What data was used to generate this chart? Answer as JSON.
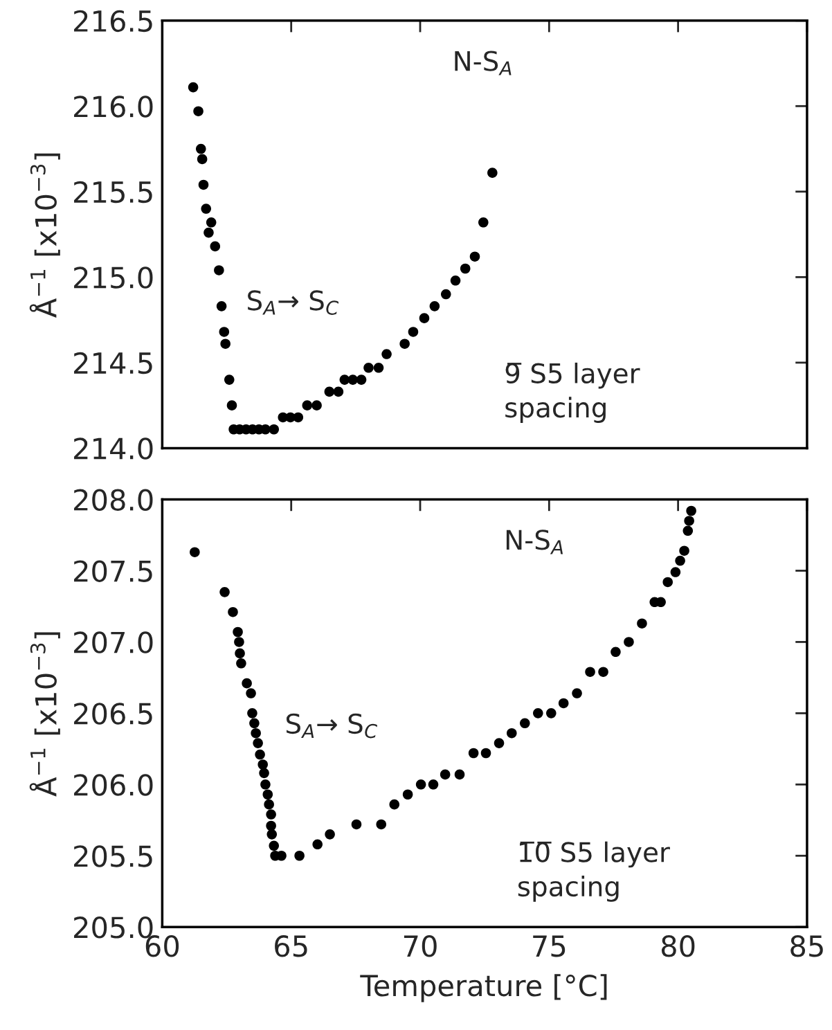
{
  "chart_data": [
    {
      "type": "scatter",
      "ylabel": "Å$^{−1}$ [x10$^{−3}$]",
      "xlim": [
        60,
        85
      ],
      "xticks": [
        60,
        65,
        70,
        75,
        80,
        85
      ],
      "ylim": [
        214.0,
        216.5
      ],
      "yticks": [
        {
          "value": 214.0,
          "label": "214.0"
        },
        {
          "value": 214.5,
          "label": "214.5"
        },
        {
          "value": 215.0,
          "label": "215.0"
        },
        {
          "value": 215.5,
          "label": "215.5"
        },
        {
          "value": 216.0,
          "label": "216.0"
        },
        {
          "value": 216.5,
          "label": "216.5"
        }
      ],
      "tick_labels": "y",
      "marker": "circle",
      "grid": false,
      "legend": false,
      "annotations": [
        "N-S$_{A}$",
        "S$_{A}$→ S$_{C}$",
        "9̅ S5 layer\nspacing"
      ],
      "series": [
        {
          "color": "#000000",
          "x": [
            61.2,
            61.4,
            61.5,
            61.55,
            61.6,
            61.7,
            61.9,
            61.8,
            62.05,
            62.2,
            62.3,
            62.4,
            62.45,
            62.6,
            62.7,
            62.77,
            63.0,
            63.25,
            63.5,
            63.75,
            64.0,
            64.33,
            64.68,
            64.97,
            65.27,
            65.62,
            65.99,
            66.48,
            66.83,
            67.07,
            67.39,
            67.72,
            68.0,
            68.39,
            68.7,
            69.4,
            69.73,
            70.16,
            70.56,
            71.0,
            71.37,
            71.75,
            72.12,
            72.45,
            72.8
          ],
          "values": [
            216.11,
            215.97,
            215.75,
            215.69,
            215.54,
            215.4,
            215.32,
            215.26,
            215.18,
            215.04,
            214.83,
            214.68,
            214.61,
            214.4,
            214.25,
            214.11,
            214.11,
            214.11,
            214.11,
            214.11,
            214.11,
            214.11,
            214.18,
            214.18,
            214.18,
            214.25,
            214.25,
            214.33,
            214.33,
            214.4,
            214.4,
            214.4,
            214.47,
            214.47,
            214.55,
            214.61,
            214.68,
            214.76,
            214.83,
            214.9,
            214.98,
            215.05,
            215.12,
            215.32,
            215.61
          ]
        }
      ]
    },
    {
      "type": "scatter",
      "xlabel": "Temperature [°C]",
      "ylabel": "Å$^{−1}$ [x10$^{−3}$]",
      "xlim": [
        60,
        85
      ],
      "xticks": [
        60,
        65,
        70,
        75,
        80,
        85
      ],
      "ylim": [
        205.0,
        208.0
      ],
      "yticks": [
        {
          "value": 205.0,
          "label": "205.0"
        },
        {
          "value": 205.5,
          "label": "205.5"
        },
        {
          "value": 206.0,
          "label": "206.0"
        },
        {
          "value": 206.5,
          "label": "206.5"
        },
        {
          "value": 207.0,
          "label": "207.0"
        },
        {
          "value": 207.5,
          "label": "207.5"
        },
        {
          "value": 208.0,
          "label": "208.0"
        }
      ],
      "marker": "circle",
      "grid": false,
      "legend": false,
      "annotations": [
        "N-S$_{A}$",
        "S$_{A}$→ S$_{C}$",
        "1̅0̅ S5 layer\nspacing"
      ],
      "series": [
        {
          "color": "#000000",
          "x": [
            61.26,
            62.42,
            62.74,
            62.93,
            62.98,
            63.01,
            63.06,
            63.28,
            63.44,
            63.49,
            63.57,
            63.63,
            63.71,
            63.79,
            63.9,
            63.95,
            64.0,
            64.09,
            64.14,
            64.22,
            64.22,
            64.25,
            64.33,
            64.38,
            64.62,
            65.32,
            66.02,
            66.5,
            67.53,
            68.49,
            69.0,
            69.52,
            70.03,
            70.51,
            70.97,
            71.53,
            72.07,
            72.55,
            73.06,
            73.55,
            74.06,
            74.57,
            75.08,
            75.56,
            76.08,
            76.59,
            77.1,
            77.58,
            78.09,
            78.6,
            79.09,
            79.33,
            79.6,
            79.9,
            80.08,
            80.24,
            80.38,
            80.43,
            80.51
          ],
          "values": [
            207.63,
            207.35,
            207.21,
            207.07,
            207.0,
            206.92,
            206.85,
            206.71,
            206.64,
            206.5,
            206.43,
            206.36,
            206.29,
            206.21,
            206.14,
            206.08,
            206.0,
            205.93,
            205.86,
            205.79,
            205.71,
            205.65,
            205.57,
            205.5,
            205.5,
            205.5,
            205.58,
            205.65,
            205.72,
            205.72,
            205.86,
            205.93,
            206.0,
            206.0,
            206.07,
            206.07,
            206.22,
            206.22,
            206.29,
            206.36,
            206.43,
            206.5,
            206.5,
            206.57,
            206.64,
            206.79,
            206.79,
            206.93,
            207.0,
            207.13,
            207.28,
            207.28,
            207.42,
            207.49,
            207.57,
            207.64,
            207.78,
            207.85,
            207.92
          ]
        }
      ]
    }
  ]
}
